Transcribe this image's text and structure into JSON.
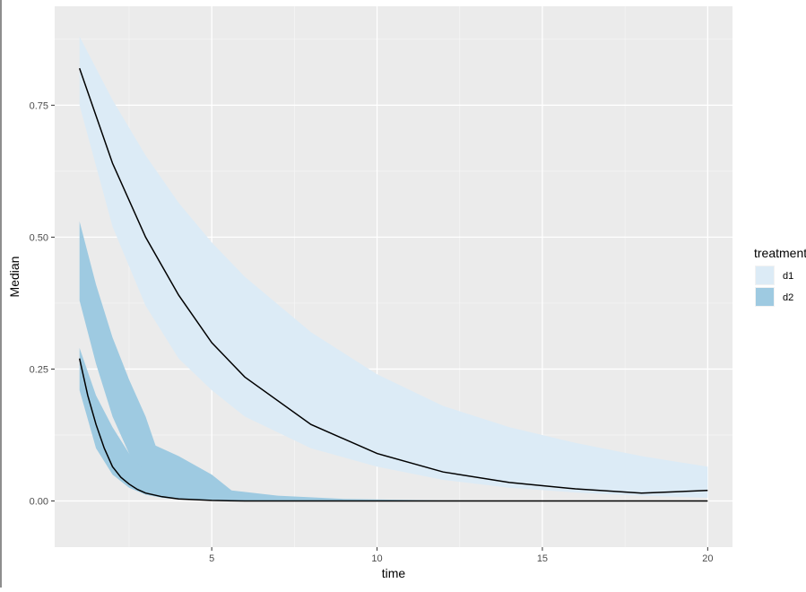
{
  "chart_data": {
    "type": "area",
    "title": "",
    "xlabel": "time",
    "ylabel": "Median",
    "xlim": [
      0.25,
      20.75
    ],
    "ylim": [
      -0.0875,
      0.9375
    ],
    "x_ticks": [
      {
        "value": 5,
        "label": "5"
      },
      {
        "value": 10,
        "label": "10"
      },
      {
        "value": 15,
        "label": "15"
      },
      {
        "value": 20,
        "label": "20"
      }
    ],
    "y_ticks": [
      {
        "value": 0,
        "label": "0.00"
      },
      {
        "value": 0.25,
        "label": "0.25"
      },
      {
        "value": 0.5,
        "label": "0.50"
      },
      {
        "value": 0.75,
        "label": "0.75"
      }
    ],
    "grid": true,
    "legend": {
      "title": "treatment",
      "position": "right",
      "entries": [
        {
          "label": "d1",
          "color": "#dcebf6"
        },
        {
          "label": "d2",
          "color": "#9ecae1"
        }
      ]
    },
    "series": [
      {
        "name": "d1",
        "color": "#dcebf6",
        "x": [
          1,
          2,
          3,
          4,
          5,
          6,
          8,
          10,
          12,
          14,
          16,
          18,
          20
        ],
        "lower": [
          0.75,
          0.52,
          0.37,
          0.27,
          0.21,
          0.16,
          0.1,
          0.065,
          0.04,
          0.025,
          0.016,
          0.01,
          0.006
        ],
        "upper": [
          0.88,
          0.76,
          0.655,
          0.565,
          0.49,
          0.425,
          0.32,
          0.24,
          0.18,
          0.14,
          0.11,
          0.085,
          0.065
        ],
        "median": [
          0.82,
          0.64,
          0.5,
          0.39,
          0.3,
          0.235,
          0.145,
          0.09,
          0.055,
          0.035,
          0.023,
          0.015,
          0.02
        ]
      },
      {
        "name": "d2",
        "color": "#9ecae1",
        "bands": [
          {
            "x": [
              1,
              1.5,
              2,
              2.5,
              3,
              3.3
            ],
            "lower": [
              0.38,
              0.26,
              0.16,
              0.09,
              0.045,
              0.03
            ],
            "upper": [
              0.53,
              0.41,
              0.31,
              0.23,
              0.16,
              0.105
            ]
          },
          {
            "x": [
              1,
              1.5,
              2,
              2.5,
              3,
              3.5,
              4,
              5,
              6,
              8,
              10,
              20
            ],
            "lower": [
              0.21,
              0.1,
              0.05,
              0.025,
              0.012,
              0.006,
              0.003,
              0.001,
              0,
              0,
              0,
              0
            ],
            "upper": [
              0.29,
              0.2,
              0.14,
              0.09,
              0.055,
              0.035,
              0.02,
              0.008,
              0.004,
              0.001,
              0,
              0
            ]
          },
          {
            "x": [
              3.3,
              4,
              5,
              5.6,
              7,
              9,
              12,
              20
            ],
            "lower": [
              0.02,
              0.008,
              0.002,
              0.001,
              0,
              0,
              0,
              0
            ],
            "upper": [
              0.105,
              0.085,
              0.05,
              0.02,
              0.01,
              0.004,
              0.001,
              0
            ]
          }
        ],
        "median": {
          "x": [
            1,
            1.25,
            1.5,
            1.75,
            2,
            2.25,
            2.5,
            2.75,
            3,
            3.5,
            4,
            5,
            6,
            8,
            10,
            20
          ],
          "y": [
            0.27,
            0.2,
            0.145,
            0.1,
            0.065,
            0.045,
            0.032,
            0.022,
            0.015,
            0.008,
            0.004,
            0.001,
            0,
            0,
            0,
            0
          ]
        }
      }
    ]
  }
}
